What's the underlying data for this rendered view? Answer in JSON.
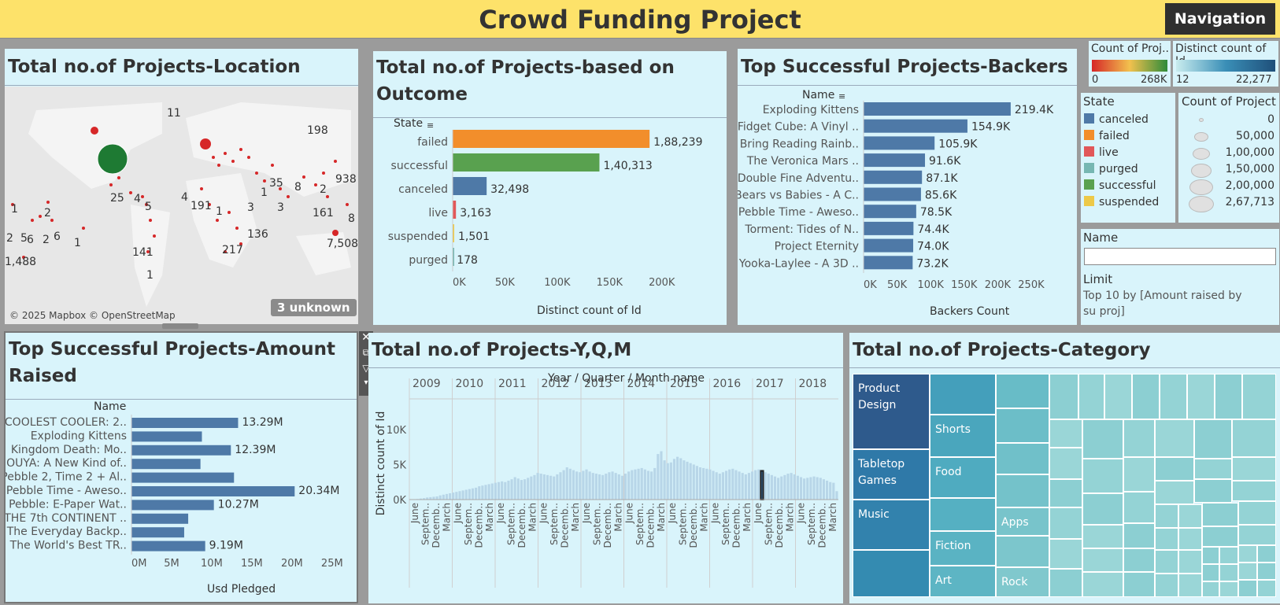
{
  "header": {
    "title": "Crowd Funding Project",
    "nav_label": "Navigation"
  },
  "map": {
    "title": "Total no.of Projects-Location",
    "labels": [
      "11",
      "198",
      "938",
      "1",
      "2",
      "2",
      "5",
      "6",
      "2",
      "6",
      "1",
      "25",
      "4",
      "5",
      "4",
      "191",
      "1",
      "3",
      "1",
      "35",
      "8",
      "2",
      "3",
      "161",
      "8",
      "7,508",
      "1,488",
      "141",
      "217",
      "136",
      "1"
    ],
    "attribution": "© 2025 Mapbox © OpenStreetMap",
    "unknown": "3 unknown"
  },
  "outcome": {
    "title_line1": "Total no.of Projects-based on",
    "title_line2": "Outcome",
    "header": "State",
    "xlabel": "Distinct count of Id",
    "ticks": [
      "0K",
      "50K",
      "100K",
      "150K",
      "200K"
    ]
  },
  "backers": {
    "title": "Top Successful Projects-Backers",
    "header": "Name",
    "xlabel": "Backers Count",
    "ticks": [
      "0K",
      "50K",
      "100K",
      "150K",
      "200K",
      "250K"
    ]
  },
  "amount": {
    "title_line1": "Top Successful Projects-Amount",
    "title_line2": "Raised",
    "header": "Name",
    "xlabel": "Usd Pledged",
    "ticks": [
      "0M",
      "5M",
      "10M",
      "15M",
      "20M",
      "25M"
    ]
  },
  "timeline": {
    "title": "Total no.of Projects-Y,Q,M",
    "axis_title": "Year / Quarter / Month name",
    "ylabel": "Distinct count of Id",
    "years": [
      "2009",
      "2010",
      "2011",
      "2012",
      "2013",
      "2014",
      "2015",
      "2016",
      "2017",
      "2018"
    ],
    "yticks": [
      "10K",
      "5K",
      "0K"
    ],
    "month_labels": [
      "June",
      "Septem..",
      "Decemb..",
      "March",
      "June",
      "Septem..",
      "Decemb..",
      "March",
      "June",
      "Septem..",
      "Decemb..",
      "March",
      "June",
      "Septem..",
      "Decemb..",
      "March",
      "June",
      "Septem..",
      "Decemb..",
      "March",
      "June",
      "Septem..",
      "Decemb..",
      "March",
      "June",
      "Septem..",
      "Decemb..",
      "March",
      "June",
      "Septem..",
      "Decemb..",
      "March",
      "June",
      "Septem..",
      "Decemb..",
      "March",
      "June",
      "Septem..",
      "Decemb..",
      "March"
    ]
  },
  "category": {
    "title": "Total no.of Projects-Category",
    "labels": {
      "product_design": "Product Design",
      "tabletop": "Tabletop Games",
      "music": "Music",
      "shorts": "Shorts",
      "food": "Food",
      "fiction": "Fiction",
      "art": "Art",
      "apps": "Apps",
      "rock": "Rock"
    }
  },
  "legends": {
    "count_title": "Count of Proj..",
    "count_min": "0",
    "count_max": "268K",
    "distinct_title": "Distinct count of Id",
    "distinct_min": "12",
    "distinct_max": "22,277",
    "state_title": "State",
    "states": [
      {
        "label": "canceled",
        "color": "#4e79a7"
      },
      {
        "label": "failed",
        "color": "#f28e2b"
      },
      {
        "label": "live",
        "color": "#e15759"
      },
      {
        "label": "purged",
        "color": "#76b7b2"
      },
      {
        "label": "successful",
        "color": "#59a14f"
      },
      {
        "label": "suspended",
        "color": "#edc948"
      }
    ],
    "size_title": "Count of Project",
    "sizes": [
      "0",
      "50,000",
      "1,00,000",
      "1,50,000",
      "2,00,000",
      "2,67,713"
    ]
  },
  "filter": {
    "name_label": "Name",
    "name_value": "",
    "limit_label": "Limit",
    "limit_value": "Top 10 by [Amount raised by su proj]"
  },
  "chart_data": [
    {
      "type": "bar",
      "title": "Total no.of Projects-based on Outcome",
      "xlabel": "Distinct count of Id",
      "ylabel": "State",
      "categories": [
        "failed",
        "successful",
        "canceled",
        "live",
        "suspended",
        "purged"
      ],
      "values": [
        188239,
        140313,
        32498,
        3163,
        1501,
        178
      ],
      "value_labels": [
        "1,88,239",
        "1,40,313",
        "32,498",
        "3,163",
        "1,501",
        "178"
      ],
      "colors": [
        "#f28e2b",
        "#59a14f",
        "#4e79a7",
        "#e15759",
        "#edc948",
        "#76b7b2"
      ],
      "xlim": [
        0,
        225000
      ]
    },
    {
      "type": "bar",
      "title": "Top Successful Projects-Backers",
      "xlabel": "Backers Count",
      "ylabel": "Name",
      "categories": [
        "Exploding Kittens",
        "Fidget Cube: A Vinyl ..",
        "Bring Reading Rainb..",
        "The Veronica Mars ..",
        "Double Fine Adventu..",
        "Bears vs Babies - A C..",
        "Pebble Time - Aweso..",
        "Torment: Tides of N..",
        "Project Eternity",
        "Yooka-Laylee - A 3D .."
      ],
      "values": [
        219400,
        154900,
        105900,
        91600,
        87100,
        85600,
        78500,
        74400,
        74000,
        73200
      ],
      "value_labels": [
        "219.4K",
        "154.9K",
        "105.9K",
        "91.6K",
        "87.1K",
        "85.6K",
        "78.5K",
        "74.4K",
        "74.0K",
        "73.2K"
      ],
      "xlim": [
        0,
        270000
      ]
    },
    {
      "type": "bar",
      "title": "Top Successful Projects-Amount Raised",
      "xlabel": "Usd Pledged",
      "ylabel": "Name",
      "categories": [
        "COOLEST COOLER: 2..",
        "Exploding Kittens",
        "Kingdom Death: Mo..",
        "OUYA: A New Kind of..",
        "Pebble 2, Time 2 + Al..",
        "Pebble Time - Aweso..",
        "Pebble: E-Paper Wat..",
        "THE 7th CONTINENT ..",
        "The Everyday Backp..",
        "The World's Best TR.."
      ],
      "values": [
        13.29,
        8.78,
        12.39,
        8.6,
        12.78,
        20.34,
        10.27,
        7.07,
        6.57,
        9.19
      ],
      "value_labels": [
        "13.29M",
        "",
        "12.39M",
        "",
        "",
        "20.34M",
        "10.27M",
        "",
        "",
        "9.19M"
      ],
      "xlim": [
        0,
        26
      ]
    },
    {
      "type": "bar",
      "title": "Total no.of Projects-Y,Q,M",
      "xlabel": "Year / Quarter / Month name",
      "ylabel": "Distinct count of Id",
      "categories_note": "monthly from 2009 to 2018",
      "values": [
        10,
        40,
        80,
        150,
        200,
        300,
        350,
        400,
        450,
        600,
        700,
        800,
        900,
        1000,
        1100,
        1200,
        1300,
        1400,
        1500,
        1600,
        1700,
        1900,
        2000,
        2100,
        2200,
        2300,
        2400,
        2500,
        2600,
        2500,
        2700,
        2900,
        3200,
        3000,
        2800,
        2900,
        3100,
        3300,
        3500,
        3800,
        3700,
        3600,
        3500,
        3400,
        3300,
        3600,
        3900,
        4200,
        4600,
        4400,
        4200,
        4000,
        3900,
        4100,
        4300,
        4000,
        3800,
        3700,
        3600,
        3500,
        3700,
        3900,
        4000,
        3800,
        3600,
        3400,
        3700,
        4000,
        4200,
        4300,
        4400,
        4500,
        4300,
        4100,
        4000,
        4500,
        6500,
        6900,
        5600,
        5200,
        5300,
        5800,
        6100,
        5900,
        5600,
        5400,
        5200,
        5000,
        4800,
        4600,
        4500,
        4400,
        4300,
        4100,
        3900,
        3700,
        3900,
        4100,
        4300,
        4400,
        4200,
        4000,
        3800,
        3600,
        3800,
        4000,
        4200,
        4300,
        4100,
        3900,
        3700,
        3500,
        3300,
        3100,
        3300,
        3500,
        3700,
        3800,
        3600,
        3400,
        3200,
        3000,
        3100,
        3200,
        3300,
        3200,
        3100,
        2900,
        2700,
        2500,
        2400,
        1200
      ],
      "ylim": [
        0,
        11000
      ],
      "highlight_index": 108
    }
  ]
}
